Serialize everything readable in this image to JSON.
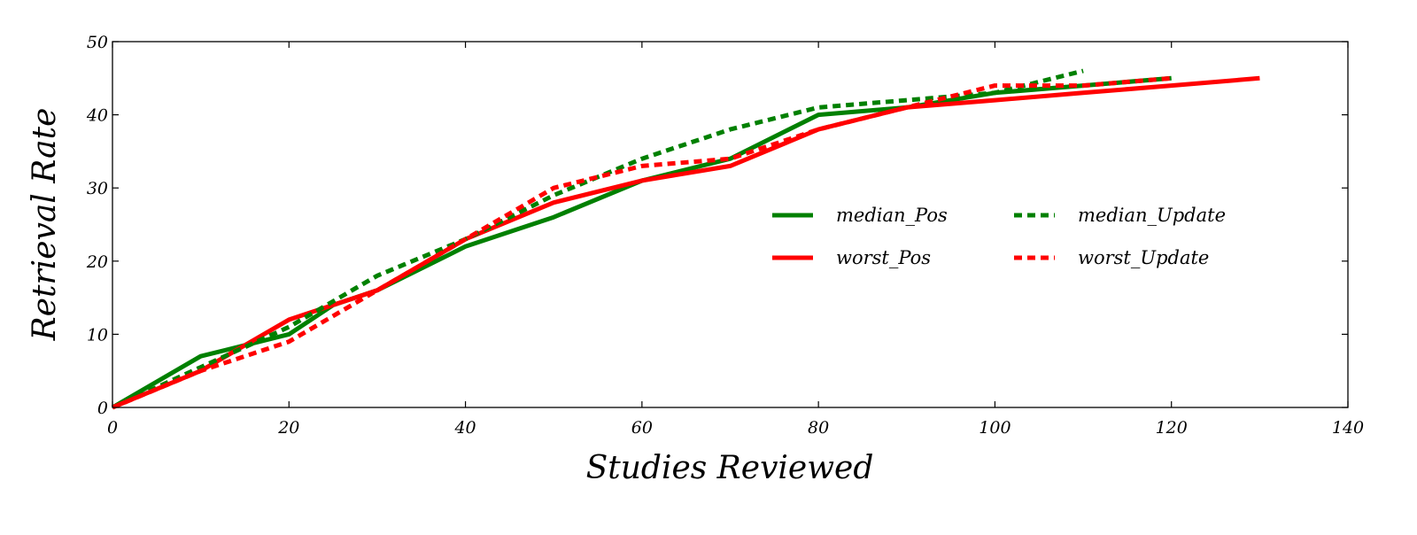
{
  "chart_data": {
    "type": "line",
    "title": "",
    "xlabel": "Studies Reviewed",
    "ylabel": "Retrieval Rate",
    "xlim": [
      0,
      140
    ],
    "ylim": [
      0,
      50
    ],
    "xticks": [
      0,
      20,
      40,
      60,
      80,
      100,
      120,
      140
    ],
    "yticks": [
      0,
      10,
      20,
      30,
      40,
      50
    ],
    "grid": false,
    "legend_position": "center-right",
    "legend_columns": 2,
    "series": [
      {
        "name": "median_Pos",
        "color": "#008000",
        "dash": "solid",
        "x": [
          0,
          10,
          15,
          20,
          25,
          30,
          40,
          50,
          60,
          70,
          80,
          90,
          100,
          110,
          120
        ],
        "y": [
          0,
          7,
          8.5,
          10,
          14,
          16,
          22,
          26,
          31,
          34,
          40,
          41,
          43,
          44,
          45
        ]
      },
      {
        "name": "worst_Pos",
        "color": "#ff0000",
        "dash": "solid",
        "x": [
          0,
          10,
          20,
          30,
          40,
          50,
          60,
          70,
          80,
          90,
          100,
          110,
          120,
          130
        ],
        "y": [
          0,
          5,
          12,
          16,
          23,
          28,
          31,
          33,
          38,
          41,
          42,
          43,
          44,
          45
        ]
      },
      {
        "name": "median_Update",
        "color": "#008000",
        "dash": "dotted",
        "x": [
          0,
          10,
          20,
          30,
          40,
          50,
          60,
          70,
          80,
          90,
          100,
          105,
          110
        ],
        "y": [
          0,
          5.5,
          11,
          18,
          23,
          29,
          34,
          38,
          41,
          42,
          43,
          44.5,
          46
        ]
      },
      {
        "name": "worst_Update",
        "color": "#ff0000",
        "dash": "dotted",
        "x": [
          0,
          10,
          20,
          30,
          40,
          50,
          60,
          70,
          80,
          90,
          100,
          110,
          120
        ],
        "y": [
          0,
          5,
          9,
          16,
          23,
          30,
          33,
          34,
          38,
          41,
          44,
          44,
          45
        ]
      }
    ]
  }
}
